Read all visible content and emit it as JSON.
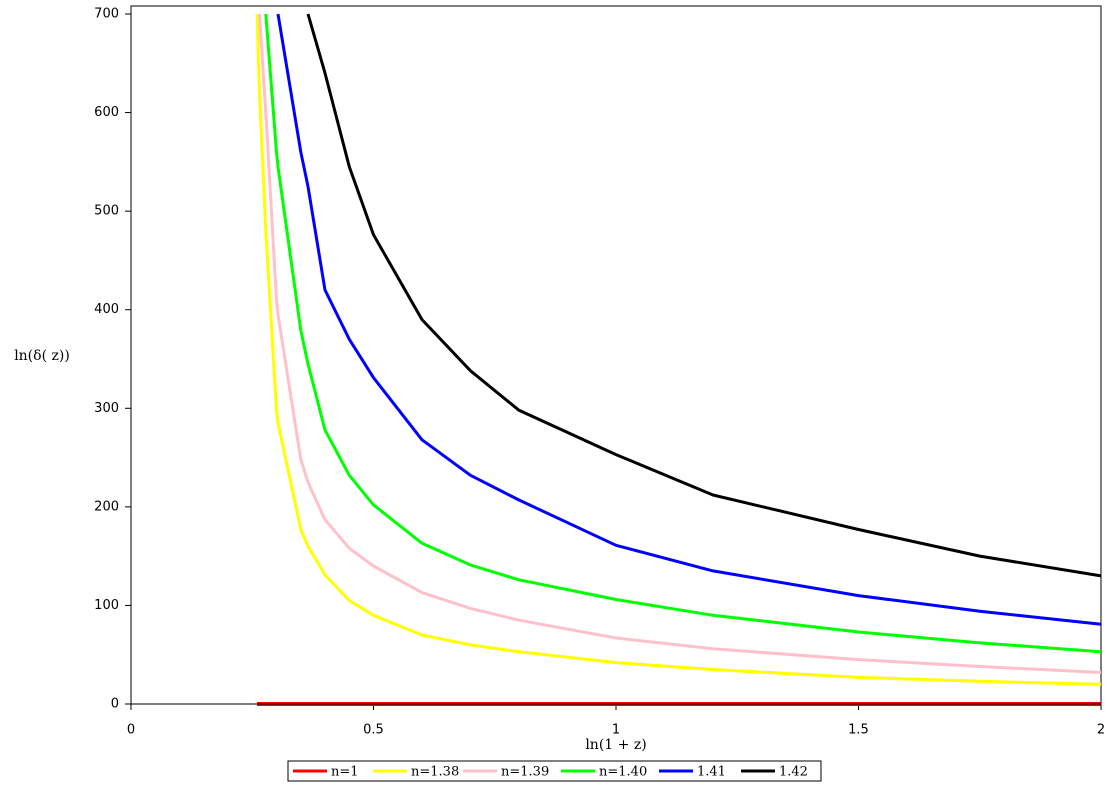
{
  "chart_data": {
    "type": "line",
    "xlabel": "ln(1 + z)",
    "ylabel": "ln(δ( z))",
    "x": [
      0.26,
      0.265,
      0.278,
      0.3,
      0.303,
      0.35,
      0.365,
      0.4,
      0.45,
      0.5,
      0.6,
      0.7,
      0.8,
      1.0,
      1.2,
      1.5,
      1.75,
      2.0
    ],
    "series": [
      {
        "name": "n=1",
        "color": "#ff0000",
        "values": [
          0,
          0,
          0,
          0,
          0,
          0,
          0,
          0,
          0,
          0,
          0,
          0,
          0,
          0,
          0,
          0,
          0,
          0
        ]
      },
      {
        "name": "n=1.38",
        "color": "#ffff00",
        "values": [
          700,
          620,
          480,
          298,
          285,
          177,
          160,
          131,
          105,
          90,
          70,
          60,
          53,
          42,
          35,
          27,
          23,
          20
        ]
      },
      {
        "name": "n=1.39",
        "color": "#ffc0cb",
        "values": [
          null,
          700,
          600,
          410,
          395,
          248,
          225,
          187,
          158,
          140,
          113,
          97,
          85,
          67,
          56,
          45,
          38,
          32
        ]
      },
      {
        "name": "n=1.40",
        "color": "#00ff00",
        "values": [
          null,
          null,
          700,
          560,
          545,
          379,
          345,
          278,
          232,
          202,
          163,
          141,
          126,
          106,
          90,
          73,
          62,
          53
        ]
      },
      {
        "name": "1.41",
        "color": "#0000ff",
        "values": [
          null,
          null,
          null,
          null,
          700,
          560,
          525,
          420,
          370,
          331,
          268,
          232,
          207,
          161,
          135,
          110,
          94,
          81
        ]
      },
      {
        "name": "1.42",
        "color": "#000000",
        "values": [
          null,
          null,
          null,
          null,
          null,
          null,
          700,
          640,
          545,
          476,
          390,
          338,
          298,
          253,
          212,
          177,
          150,
          130
        ]
      }
    ],
    "xlim": [
      0,
      2
    ],
    "ylim": [
      0,
      700
    ],
    "xticks": [
      0,
      0.5,
      1,
      1.5,
      2
    ],
    "yticks": [
      0,
      100,
      200,
      300,
      400,
      500,
      600,
      700
    ],
    "legend": "bottom"
  }
}
